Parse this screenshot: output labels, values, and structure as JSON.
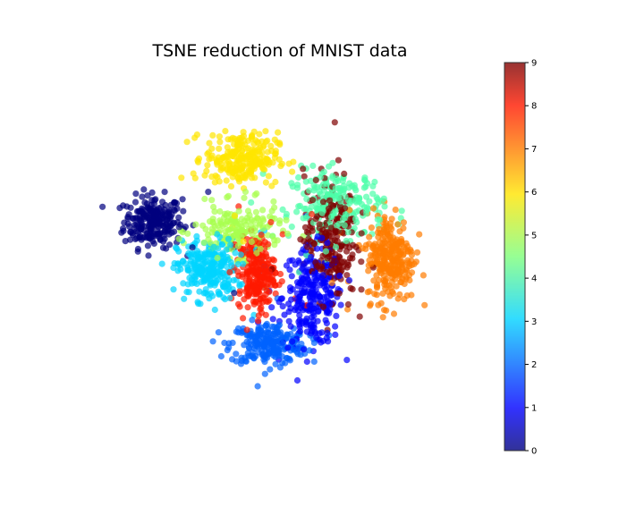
{
  "chart_data": {
    "type": "scatter",
    "title": "TSNE reduction of MNIST data",
    "xlabel": "",
    "ylabel": "",
    "axes_visible": false,
    "colormap": "jet",
    "point_alpha": 0.7,
    "colorbar": {
      "range": [
        0,
        9
      ],
      "ticks": [
        "0",
        "1",
        "2",
        "3",
        "4",
        "5",
        "6",
        "7",
        "8",
        "9"
      ]
    },
    "clusters": [
      {
        "label": 0,
        "color": "#00007f",
        "center": [
          -6.4,
          1.6
        ],
        "spread": [
          0.72,
          0.55
        ],
        "approx_points": 240
      },
      {
        "label": 1,
        "color": "#0000ff",
        "center": [
          1.55,
          -1.6
        ],
        "spread": [
          0.75,
          1.05
        ],
        "approx_points": 260
      },
      {
        "label": 2,
        "color": "#0063ff",
        "center": [
          -0.65,
          -3.6
        ],
        "spread": [
          0.95,
          0.45
        ],
        "approx_points": 230
      },
      {
        "label": 3,
        "color": "#00d4ff",
        "center": [
          -3.7,
          -0.45
        ],
        "spread": [
          0.75,
          0.65
        ],
        "approx_points": 250
      },
      {
        "label": 4,
        "color": "#4dffaa",
        "center": [
          2.8,
          2.3
        ],
        "spread": [
          1.15,
          0.75
        ],
        "approx_points": 230
      },
      {
        "label": 5,
        "color": "#a8ff4e",
        "center": [
          -2.2,
          1.2
        ],
        "spread": [
          1.1,
          0.55
        ],
        "approx_points": 170
      },
      {
        "label": 6,
        "color": "#ffe600",
        "center": [
          -2.0,
          4.3
        ],
        "spread": [
          0.9,
          0.55
        ],
        "approx_points": 250
      },
      {
        "label": 7,
        "color": "#ff7c00",
        "center": [
          5.4,
          0.1
        ],
        "spread": [
          0.6,
          0.95
        ],
        "approx_points": 270
      },
      {
        "label": 8,
        "color": "#ff1900",
        "center": [
          -1.25,
          -0.6
        ],
        "spread": [
          0.45,
          0.8
        ],
        "approx_points": 240
      },
      {
        "label": 9,
        "color": "#7f0000",
        "center": [
          2.4,
          1.0
        ],
        "spread": [
          0.65,
          1.35
        ],
        "approx_points": 220
      }
    ],
    "xlim": [
      -10,
      10
    ],
    "ylim": [
      -8,
      8
    ]
  }
}
